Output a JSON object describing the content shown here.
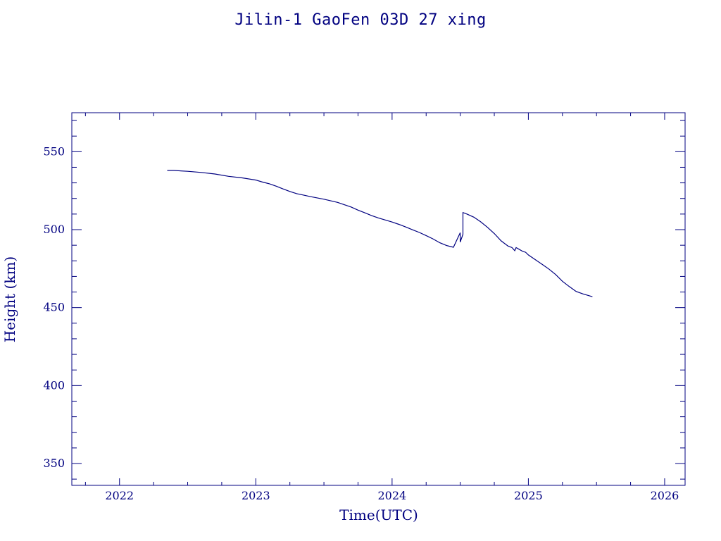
{
  "chart_data": {
    "type": "line",
    "title": "Jilin-1 GaoFen 03D 27 xing",
    "xlabel": "Time(UTC)",
    "ylabel": "Height (km)",
    "xlim": [
      2021.65,
      2026.15
    ],
    "ylim": [
      336,
      575
    ],
    "x_ticks": [
      "2022",
      "2023",
      "2024",
      "2025",
      "2026"
    ],
    "y_ticks": [
      "350",
      "400",
      "450",
      "500",
      "550"
    ],
    "color": "#000080",
    "series": [
      {
        "x": [
          2022.35,
          2022.4,
          2022.45,
          2022.5,
          2022.6,
          2022.7,
          2022.8,
          2022.9,
          2023.0,
          2023.05,
          2023.1,
          2023.15,
          2023.2,
          2023.25,
          2023.3,
          2023.35,
          2023.4,
          2023.5,
          2023.6,
          2023.7,
          2023.75,
          2023.8,
          2023.85,
          2023.9,
          2023.95,
          2024.0,
          2024.05,
          2024.1,
          2024.15,
          2024.2,
          2024.25,
          2024.3,
          2024.35,
          2024.4,
          2024.45,
          2024.5,
          2024.5,
          2024.52,
          2024.52,
          2024.55,
          2024.6,
          2024.65,
          2024.7,
          2024.75,
          2024.8,
          2024.85,
          2024.88,
          2024.9,
          2024.91,
          2024.93,
          2024.95,
          2024.96,
          2024.98,
          2025.0,
          2025.05,
          2025.1,
          2025.15,
          2025.2,
          2025.25,
          2025.3,
          2025.35,
          2025.4,
          2025.47
        ],
        "y": [
          538,
          538,
          537.7,
          537.4,
          536.7,
          535.7,
          534.2,
          533.2,
          531.8,
          530.5,
          529.4,
          527.9,
          526.1,
          524.5,
          523.1,
          522.2,
          521.2,
          519.5,
          517.5,
          514.5,
          512.5,
          510.8,
          509.0,
          507.5,
          506.2,
          504.9,
          503.4,
          501.7,
          499.9,
          498.2,
          496.2,
          494.1,
          491.6,
          489.8,
          488.7,
          498,
          492,
          497,
          511,
          510,
          508,
          505,
          501.5,
          497.5,
          492.8,
          489.5,
          488.5,
          486.5,
          488.5,
          487.5,
          486.5,
          486,
          485.5,
          483.8,
          480.8,
          477.8,
          474.8,
          471.2,
          466.9,
          463.5,
          460.4,
          458.8,
          457
        ]
      }
    ],
    "grid": false
  }
}
